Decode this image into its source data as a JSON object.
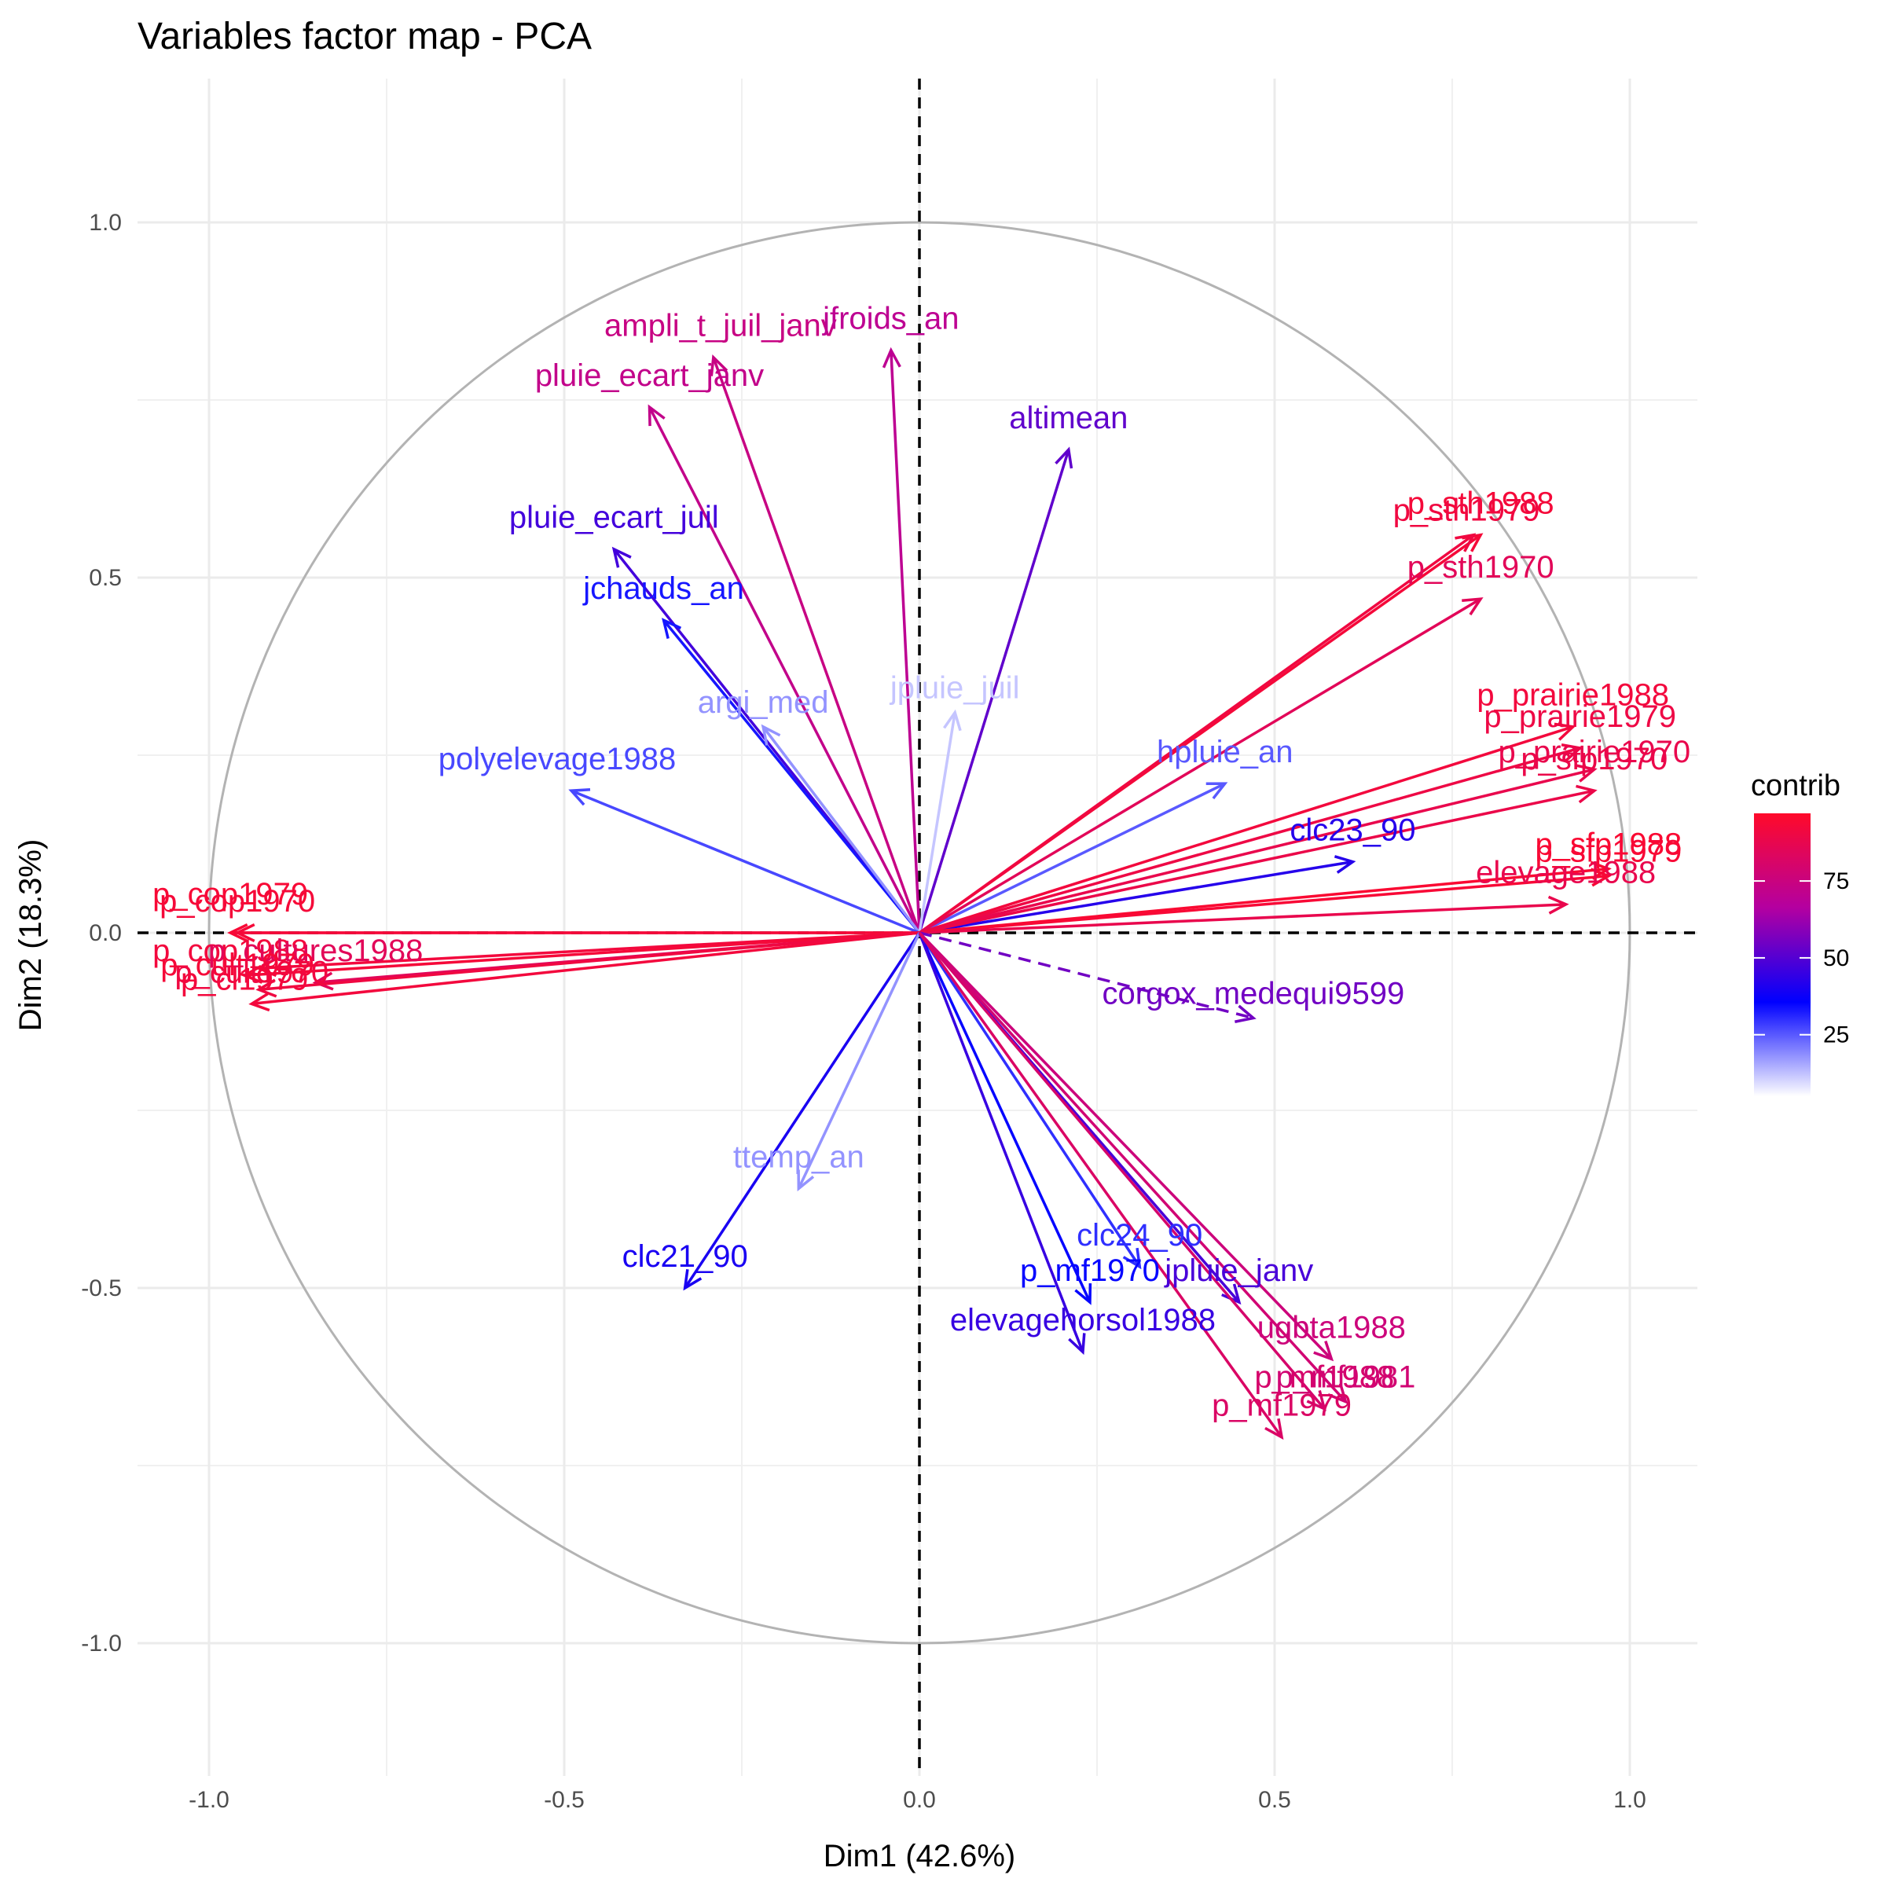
{
  "chart_data": {
    "type": "pca-variables-factor-map",
    "title": "Variables factor map - PCA",
    "xlabel": "Dim1 (42.6%)",
    "ylabel": "Dim2 (18.3%)",
    "xlim": [
      -1.1,
      1.1
    ],
    "ylim": [
      -1.1,
      1.1
    ],
    "x_ticks": [
      {
        "value": -1.0,
        "label": "-1.0"
      },
      {
        "value": -0.5,
        "label": "-0.5"
      },
      {
        "value": 0.0,
        "label": "0.0"
      },
      {
        "value": 0.5,
        "label": "0.5"
      },
      {
        "value": 1.0,
        "label": "1.0"
      }
    ],
    "y_ticks": [
      {
        "value": -1.0,
        "label": "-1.0"
      },
      {
        "value": -0.5,
        "label": "-0.5"
      },
      {
        "value": 0.0,
        "label": "0.0"
      },
      {
        "value": 0.5,
        "label": "0.5"
      },
      {
        "value": 1.0,
        "label": "1.0"
      }
    ],
    "grid": true,
    "correlation_circle": true,
    "legend": {
      "title": "contrib",
      "placement": "right",
      "min": 5,
      "max": 97,
      "ticks": [
        {
          "value": 25,
          "label": "25"
        },
        {
          "value": 50,
          "label": "50"
        },
        {
          "value": 75,
          "label": "75"
        }
      ],
      "gradient": [
        "#ffffff",
        "#0000ff",
        "#b400a0",
        "#ff0a2a"
      ]
    },
    "variables": [
      {
        "name": "ampli_t_juil_janv",
        "x": -0.29,
        "y": 0.81,
        "contrib": 74,
        "lx": -0.28,
        "ly": 0.84
      },
      {
        "name": "jfroids_an",
        "x": -0.04,
        "y": 0.82,
        "contrib": 70,
        "lx": -0.04,
        "ly": 0.85
      },
      {
        "name": "pluie_ecart_janv",
        "x": -0.38,
        "y": 0.74,
        "contrib": 72,
        "lx": -0.38,
        "ly": 0.77
      },
      {
        "name": "altimean",
        "x": 0.21,
        "y": 0.68,
        "contrib": 52,
        "lx": 0.21,
        "ly": 0.71
      },
      {
        "name": "pluie_ecart_juil",
        "x": -0.43,
        "y": 0.54,
        "contrib": 47,
        "lx": -0.43,
        "ly": 0.57
      },
      {
        "name": "jchauds_an",
        "x": -0.36,
        "y": 0.44,
        "contrib": 33,
        "lx": -0.36,
        "ly": 0.47
      },
      {
        "name": "argi_med",
        "x": -0.22,
        "y": 0.29,
        "contrib": 18,
        "lx": -0.22,
        "ly": 0.31
      },
      {
        "name": "jpluie_juil",
        "x": 0.05,
        "y": 0.31,
        "contrib": 12,
        "lx": 0.05,
        "ly": 0.33
      },
      {
        "name": "polyelevage1988",
        "x": -0.49,
        "y": 0.2,
        "contrib": 27,
        "lx": -0.51,
        "ly": 0.23
      },
      {
        "name": "hpluie_an",
        "x": 0.43,
        "y": 0.21,
        "contrib": 25,
        "lx": 0.43,
        "ly": 0.24
      },
      {
        "name": "clc23_90",
        "x": 0.61,
        "y": 0.1,
        "contrib": 42,
        "lx": 0.61,
        "ly": 0.13
      },
      {
        "name": "p_sth1988",
        "x": 0.79,
        "y": 0.56,
        "contrib": 93,
        "lx": 0.79,
        "ly": 0.59
      },
      {
        "name": "p_sth1979",
        "x": 0.78,
        "y": 0.56,
        "contrib": 91,
        "lx": 0.77,
        "ly": 0.58
      },
      {
        "name": "p_sth1970",
        "x": 0.79,
        "y": 0.47,
        "contrib": 85,
        "lx": 0.79,
        "ly": 0.5
      },
      {
        "name": "p_prairie1988",
        "x": 0.92,
        "y": 0.29,
        "contrib": 92,
        "lx": 0.92,
        "ly": 0.32
      },
      {
        "name": "p_prairie1979",
        "x": 0.93,
        "y": 0.26,
        "contrib": 90,
        "lx": 0.93,
        "ly": 0.29
      },
      {
        "name": "p_prairie1970",
        "x": 0.95,
        "y": 0.23,
        "contrib": 88,
        "lx": 0.95,
        "ly": 0.24
      },
      {
        "name": "p_sfp1970",
        "x": 0.95,
        "y": 0.2,
        "contrib": 89,
        "lx": 0.95,
        "ly": 0.23
      },
      {
        "name": "p_sfp1988",
        "x": 0.97,
        "y": 0.09,
        "contrib": 95,
        "lx": 0.97,
        "ly": 0.11
      },
      {
        "name": "p_sfp1979",
        "x": 0.97,
        "y": 0.08,
        "contrib": 94,
        "lx": 0.97,
        "ly": 0.1
      },
      {
        "name": "elevage1988",
        "x": 0.91,
        "y": 0.04,
        "contrib": 88,
        "lx": 0.91,
        "ly": 0.07
      },
      {
        "name": "corgox_medequi9599",
        "x": 0.47,
        "y": -0.12,
        "contrib": 55,
        "lx": 0.47,
        "ly": -0.1,
        "dashed": true
      },
      {
        "name": "p_cop1979",
        "x": -0.97,
        "y": 0.0,
        "contrib": 94,
        "lx": -0.97,
        "ly": 0.04
      },
      {
        "name": "p_cop1970",
        "x": -0.96,
        "y": 0.0,
        "contrib": 93,
        "lx": -0.96,
        "ly": 0.03
      },
      {
        "name": "p_cop1988",
        "x": -0.93,
        "y": -0.05,
        "contrib": 92,
        "lx": -0.97,
        "ly": -0.04
      },
      {
        "name": "p_cultures1988",
        "x": -0.85,
        "y": -0.07,
        "contrib": 85,
        "lx": -0.85,
        "ly": -0.04
      },
      {
        "name": "p_cult1979",
        "x": -0.95,
        "y": -0.06,
        "contrib": 93,
        "lx": -0.96,
        "ly": -0.06
      },
      {
        "name": "p_cult1970",
        "x": -0.93,
        "y": -0.08,
        "contrib": 91,
        "lx": -0.94,
        "ly": -0.07
      },
      {
        "name": "p_cl1979",
        "x": -0.94,
        "y": -0.1,
        "contrib": 92,
        "lx": -0.95,
        "ly": -0.08
      },
      {
        "name": "clc21_90",
        "x": -0.33,
        "y": -0.5,
        "contrib": 40,
        "lx": -0.33,
        "ly": -0.47
      },
      {
        "name": "ttemp_an",
        "x": -0.17,
        "y": -0.36,
        "contrib": 18,
        "lx": -0.17,
        "ly": -0.33
      },
      {
        "name": "clc24_90",
        "x": 0.31,
        "y": -0.47,
        "contrib": 30,
        "lx": 0.31,
        "ly": -0.44
      },
      {
        "name": "p_mf1970",
        "x": 0.24,
        "y": -0.52,
        "contrib": 35,
        "lx": 0.24,
        "ly": -0.49
      },
      {
        "name": "jpluie_janv",
        "x": 0.45,
        "y": -0.52,
        "contrib": 48,
        "lx": 0.45,
        "ly": -0.49
      },
      {
        "name": "elevagehorsol1988",
        "x": 0.23,
        "y": -0.59,
        "contrib": 45,
        "lx": 0.23,
        "ly": -0.56
      },
      {
        "name": "ugbta1988",
        "x": 0.58,
        "y": -0.6,
        "contrib": 76,
        "lx": 0.58,
        "ly": -0.57
      },
      {
        "name": "p_mf1988",
        "x": 0.57,
        "y": -0.67,
        "contrib": 80,
        "lx": 0.57,
        "ly": -0.64
      },
      {
        "name": "p_mf1981",
        "x": 0.6,
        "y": -0.66,
        "contrib": 78,
        "lx": 0.6,
        "ly": -0.64
      },
      {
        "name": "p_mf1979",
        "x": 0.51,
        "y": -0.71,
        "contrib": 82,
        "lx": 0.51,
        "ly": -0.68
      }
    ]
  }
}
